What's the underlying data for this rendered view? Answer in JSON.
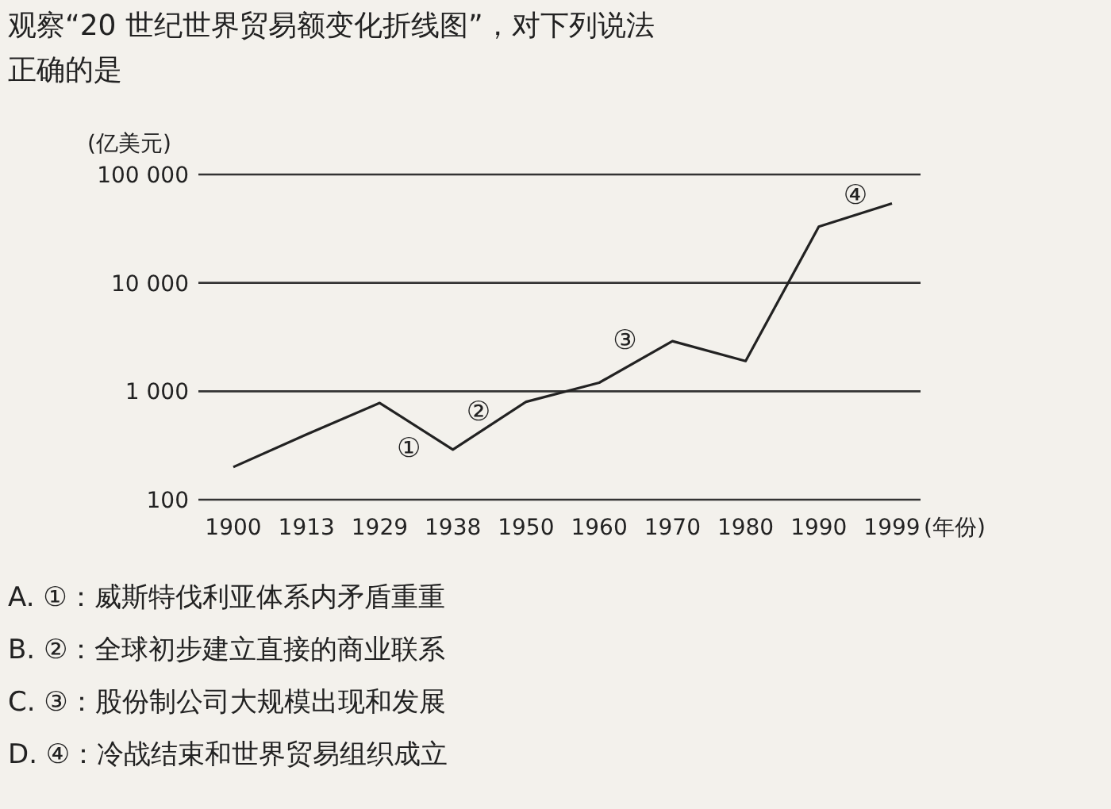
{
  "chart_data": {
    "type": "line",
    "title": "观察“20 世纪世界贸易额变化折线图”，对下列说法",
    "subtitle": "正确的是",
    "ylabel": "(亿美元)",
    "xlabel": "(年份)",
    "categories": [
      "1900",
      "1913",
      "1929",
      "1938",
      "1950",
      "1960",
      "1970",
      "1980",
      "1990",
      "1999"
    ],
    "series": [
      {
        "color": "#222222",
        "values": [
          200,
          400,
          780,
          290,
          800,
          1200,
          2900,
          1900,
          33000,
          54000
        ]
      }
    ],
    "log": true,
    "ylim": [
      100,
      100000
    ],
    "yticks": [
      {
        "value": 100,
        "label": "100"
      },
      {
        "value": 1000,
        "label": "1 000"
      },
      {
        "value": 10000,
        "label": "10 000"
      },
      {
        "value": 100000,
        "label": "100 000"
      }
    ],
    "grid": "y",
    "annotations": [
      "①",
      "②",
      "③",
      "④",
      "A. ①：威斯特伐利亚体系内矛盾重重",
      "B. ②：全球初步建立直接的商业联系",
      "C. ③：股份制公司大规模出现和发展",
      "D. ④：冷战结束和世界贸易组织成立"
    ]
  }
}
